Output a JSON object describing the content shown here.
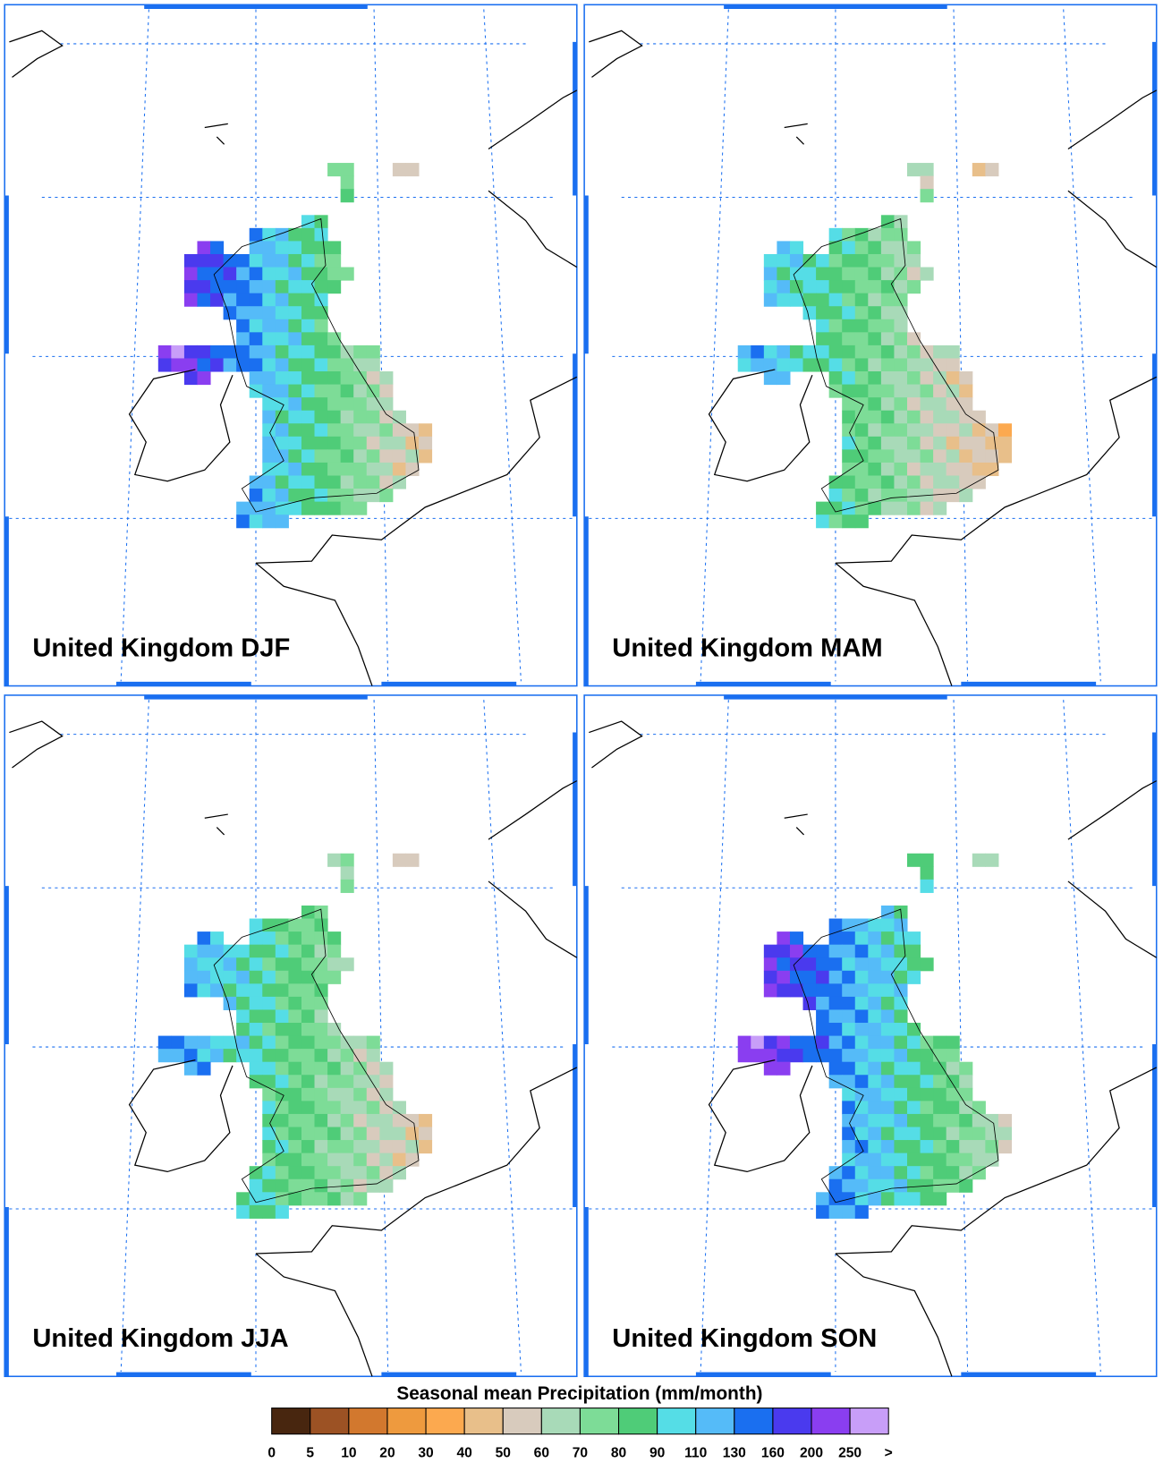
{
  "panels": [
    {
      "title": "United Kingdom DJF"
    },
    {
      "title": "United Kingdom MAM"
    },
    {
      "title": "United Kingdom JJA"
    },
    {
      "title": "United Kingdom SON"
    }
  ],
  "colorbar": {
    "title": "Seasonal mean Precipitation (mm/month)",
    "levels": [
      0,
      5,
      10,
      20,
      30,
      40,
      50,
      60,
      70,
      80,
      90,
      110,
      130,
      160,
      200,
      250
    ],
    "overflow_label": ">",
    "colors": [
      "#48260f",
      "#9c5224",
      "#d2782e",
      "#ee9a3e",
      "#fca94f",
      "#e8bf8a",
      "#d8cbbd",
      "#a8dab8",
      "#7ddc97",
      "#4fcc78",
      "#55dde6",
      "#55bbf8",
      "#1a6ff0",
      "#4a3aee",
      "#8a3ef0",
      "#c89ef8"
    ]
  }
}
